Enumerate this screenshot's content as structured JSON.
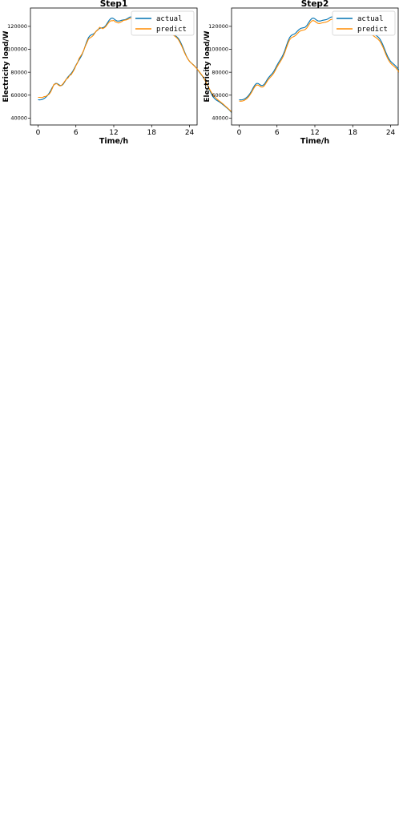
{
  "figure": {
    "xlabel": "Time/h",
    "ylabel": "Electricity load/W",
    "xticks": [
      0,
      6,
      12,
      18,
      24
    ],
    "yticks": [
      40000,
      60000,
      80000,
      100000,
      120000
    ],
    "xlim": [
      -1.2,
      25.2
    ],
    "ylim": [
      34000,
      136000
    ],
    "colors": {
      "actual": "#0072B2",
      "predict": "#FF8C00"
    },
    "legend": [
      "actual",
      "predict"
    ],
    "legend_placement": "top-right"
  },
  "chart_data": [
    {
      "type": "line",
      "title": "Step1",
      "xlabel": "Time/h",
      "ylabel": "Electricity load/W",
      "x_step_hours": 0.25,
      "series": [
        {
          "name": "actual",
          "values": [
            55995,
            55863,
            56011,
            56454,
            57209,
            58304,
            59776,
            61664,
            63994,
            66598,
            68879,
            70156,
            70164,
            69300,
            68433,
            68439,
            69660,
            71745,
            74007,
            75903,
            77380,
            78874,
            80864,
            83374,
            86047,
            88514,
            90720,
            92983,
            95723,
            99204,
            103224,
            107155,
            110201,
            111944,
            112702,
            113313,
            114393,
            115858,
            117269,
            118207,
            118602,
            118839,
            119474,
            120887,
            122985,
            125212,
            126811,
            127263,
            126630,
            125543,
            124751,
            124587,
            124897,
            125300,
            125578,
            125832,
            126323,
            127147,
            128019,
            128331,
            127497,
            125271,
            121971,
            118464,
            115904,
            115189,
            116486,
            119044,
            121358,
            122227,
            121465,
            119846,
            118539,
            118163,
            118549,
            119011,
            118867,
            117940,
            116624,
            115563,
            115169,
            115327,
            115550,
            115402,
            114783,
            113856,
            112851,
            111863,
            110756,
            109230,
            107045,
            104161,
            100786,
            97300,
            94110,
            91506,
            89567,
            88148,
            86953,
            85682,
            84157,
            82387,
            80509,
            78652,
            76820,
            74858,
            72552,
            69795,
            66694,
            63546,
            60706,
            58442,
            56833,
            55744,
            54913,
            54081,
            53104,
            51988,
            50820,
            49673,
            48543,
            47325,
            45886,
            44207,
            42454,
            40925,
            39897,
            39510,
            39730,
            40366,
            41158,
            41870
          ]
        },
        {
          "name": "predict",
          "values": [
            58122,
            58101,
            57926,
            58126,
            58767,
            58924,
            60047,
            60733,
            62773,
            65810,
            69346,
            69765,
            69954,
            68651,
            67996,
            68745,
            70264,
            72183,
            74091,
            74947,
            77130,
            77851,
            80106,
            82549,
            85732,
            88106,
            92040,
            94074,
            96232,
            99358,
            102643,
            105912,
            109009,
            109979,
            110885,
            112127,
            114191,
            116096,
            116891,
            119172,
            118616,
            117953,
            118733,
            120066,
            121868,
            123618,
            124859,
            124866,
            125184,
            123905,
            123519,
            122938,
            123466,
            124136,
            125072,
            125426,
            125665,
            126237,
            126869,
            127271,
            126174,
            123971,
            120891,
            118006,
            116247,
            116153,
            117212,
            119251,
            121154,
            121718,
            120617,
            118985,
            117922,
            117683,
            118166,
            118400,
            118150,
            117138,
            115910,
            115108,
            114849,
            114917,
            114831,
            114519,
            113905,
            113118,
            112133,
            111145,
            109951,
            108255,
            105826,
            102945,
            99810,
            96583,
            93778,
            91423,
            89563,
            88111,
            86828,
            85520,
            84150,
            82506,
            80780,
            78979,
            77160,
            75119,
            72667,
            69909,
            67124,
            64425,
            62003,
            60073,
            58477,
            57061,
            55888,
            54778,
            53705,
            52555,
            51293,
            50132,
            48927,
            47633,
            46273,
            44920,
            43680,
            42729,
            42048,
            41646,
            41522,
            41538,
            41583,
            41538
          ]
        }
      ]
    },
    {
      "type": "line",
      "title": "Step2",
      "xlabel": "Time/h",
      "ylabel": "Electricity load/W",
      "x_step_hours": 0.25,
      "series": [
        {
          "name": "actual",
          "values": [
            55995,
            55863,
            56011,
            56454,
            57209,
            58304,
            59776,
            61664,
            63994,
            66598,
            68879,
            70156,
            70164,
            69300,
            68433,
            68439,
            69660,
            71745,
            74007,
            75903,
            77380,
            78874,
            80864,
            83374,
            86047,
            88514,
            90720,
            92983,
            95723,
            99204,
            103224,
            107155,
            110201,
            111944,
            112702,
            113313,
            114393,
            115858,
            117269,
            118207,
            118602,
            118839,
            119474,
            120887,
            122985,
            125212,
            126811,
            127263,
            126630,
            125543,
            124751,
            124587,
            124897,
            125300,
            125578,
            125832,
            126323,
            127147,
            128019,
            128331,
            127497,
            125271,
            121971,
            118464,
            115904,
            115189,
            116486,
            119044,
            121358,
            122227,
            121465,
            119846,
            118539,
            118163,
            118549,
            119011,
            118867,
            117940,
            116624,
            115563,
            115169,
            115327,
            115550,
            115402,
            114783,
            113856,
            112851,
            111863,
            110756,
            109230,
            107045,
            104161,
            100786,
            97300,
            94110,
            91506,
            89567,
            88148,
            86953,
            85682,
            84157,
            82387,
            80509,
            78652,
            76820,
            74858,
            72552,
            69795,
            66694,
            63546,
            60706,
            58442,
            56833,
            55744,
            54913,
            54081,
            53104,
            51988,
            50820,
            49673,
            48543,
            47325,
            45886,
            44207,
            42454,
            40925,
            39897,
            39510,
            39730,
            40366,
            41158,
            41870
          ]
        },
        {
          "name": "predict",
          "values": [
            54861,
            54731,
            54877,
            55313,
            56057,
            57136,
            58586,
            60447,
            62744,
            65309,
            67558,
            68815,
            68823,
            67972,
            67117,
            67123,
            68326,
            70381,
            72610,
            74478,
            75933,
            77405,
            79366,
            81839,
            84473,
            86905,
            89079,
            91309,
            94009,
            97439,
            101401,
            105275,
            108278,
            109996,
            110743,
            111345,
            112409,
            113853,
            115244,
            116168,
            116557,
            116791,
            117417,
            118810,
            120878,
            123072,
            124649,
            125094,
            124470,
            123399,
            122619,
            122457,
            122762,
            123159,
            123433,
            123683,
            124167,
            124979,
            125838,
            126145,
            125323,
            123130,
            119877,
            116420,
            113898,
            113193,
            114472,
            116993,
            119274,
            120131,
            119380,
            117784,
            116496,
            116125,
            116505,
            116961,
            116819,
            115905,
            114608,
            113562,
            113174,
            113330,
            113549,
            113403,
            112793,
            111880,
            110889,
            109916,
            108825,
            107320,
            105167,
            102325,
            98999,
            95563,
            92419,
            89853,
            87942,
            86543,
            85366,
            84113,
            82611,
            80866,
            79016,
            77186,
            75381,
            73447,
            71173,
            68457,
            65401,
            62300,
            59502,
            57270,
            55684,
            54610,
            53792,
            52972,
            52009,
            50910,
            49759,
            48628,
            47515,
            46314,
            44896,
            43242,
            41514,
            40008,
            38995,
            38613,
            38830,
            39456,
            40237,
            40939
          ]
        }
      ]
    }
  ]
}
